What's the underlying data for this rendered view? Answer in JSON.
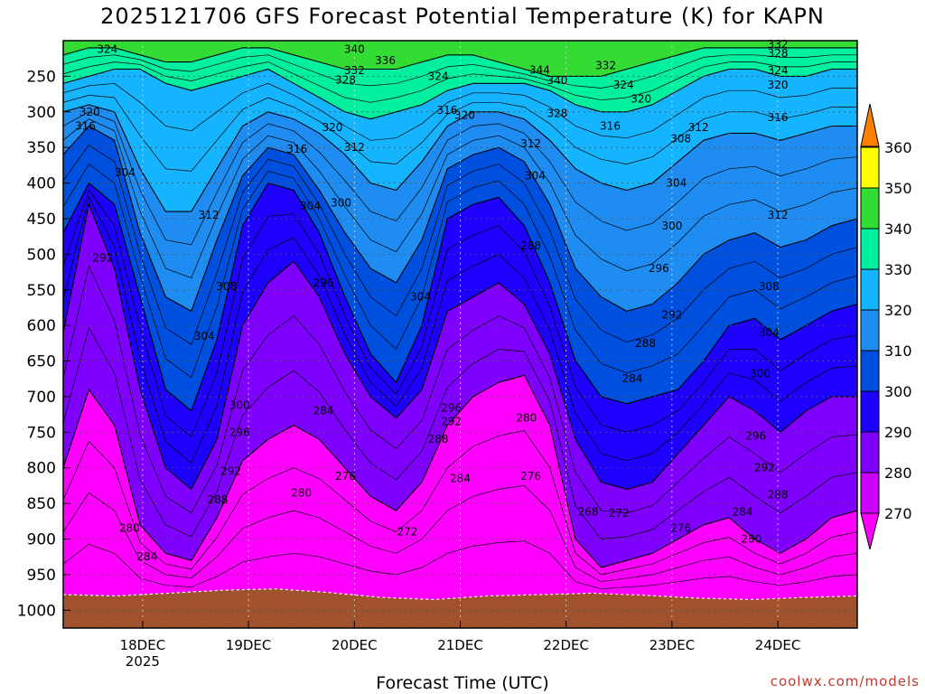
{
  "header": {
    "title": "2025121706 GFS Forecast Potential Temperature (K) for KAPN"
  },
  "footer": {
    "xlabel": "Forecast Time (UTC)",
    "credit": "coolwx.com/models"
  },
  "chart_data": {
    "type": "heatmap",
    "title": "2025121706 GFS Forecast Potential Temperature (K) for KAPN",
    "xlabel": "Forecast Time (UTC)",
    "ylabel": "",
    "y_axis": {
      "unit_scale": "pressure (hPa), inverted",
      "ylim": [
        200,
        1025
      ],
      "ticks": [
        250,
        300,
        350,
        400,
        450,
        500,
        550,
        600,
        650,
        700,
        750,
        800,
        850,
        900,
        950,
        1000
      ]
    },
    "x_axis": {
      "xlim": [
        "2025-12-17T06:00",
        "2025-12-24T18:00"
      ],
      "ticks": [
        {
          "time": "2025-12-18T00:00",
          "label": "18DEC",
          "sublabel": "2025"
        },
        {
          "time": "2025-12-19T00:00",
          "label": "19DEC"
        },
        {
          "time": "2025-12-20T00:00",
          "label": "20DEC"
        },
        {
          "time": "2025-12-21T00:00",
          "label": "21DEC"
        },
        {
          "time": "2025-12-22T00:00",
          "label": "22DEC"
        },
        {
          "time": "2025-12-23T00:00",
          "label": "23DEC"
        },
        {
          "time": "2025-12-24T00:00",
          "label": "24DEC"
        }
      ]
    },
    "grid": true,
    "colorbar": {
      "placement": "right",
      "levels": [
        270,
        280,
        290,
        300,
        310,
        320,
        330,
        340,
        350,
        360
      ],
      "colors": [
        "#ff00ff",
        "#cc00ff",
        "#7f00ff",
        "#1e00ff",
        "#0050e0",
        "#1e8cf0",
        "#14b4ff",
        "#00f0a0",
        "#32dc32",
        "#ffff00",
        "#ffbb00",
        "#ff8000"
      ]
    },
    "isentrope_profiles": [
      {
        "theta": 270,
        "p": [
          0,
          0,
          0,
          0,
          0,
          0,
          0,
          0,
          0,
          0,
          0,
          0,
          0,
          0,
          0,
          0,
          0,
          0,
          0,
          0,
          0,
          0,
          0,
          0,
          0,
          0,
          0,
          0,
          0,
          0,
          0,
          0
        ]
      },
      {
        "theta": 280,
        "p": [
          800,
          690,
          740,
          880,
          920,
          930,
          870,
          790,
          760,
          740,
          760,
          800,
          840,
          860,
          820,
          740,
          700,
          680,
          670,
          740,
          900,
          940,
          930,
          920,
          900,
          880,
          870,
          900,
          920,
          900,
          870,
          860
        ]
      },
      {
        "theta": 290,
        "p": [
          610,
          430,
          520,
          690,
          800,
          830,
          760,
          600,
          540,
          510,
          560,
          640,
          700,
          730,
          690,
          580,
          560,
          540,
          570,
          640,
          760,
          820,
          830,
          820,
          780,
          740,
          700,
          720,
          750,
          720,
          700,
          700
        ]
      },
      {
        "theta": 300,
        "p": [
          470,
          400,
          430,
          560,
          690,
          720,
          620,
          460,
          400,
          410,
          470,
          560,
          640,
          680,
          600,
          450,
          430,
          420,
          460,
          540,
          650,
          700,
          710,
          700,
          690,
          650,
          600,
          590,
          620,
          600,
          580,
          570
        ]
      },
      {
        "theta": 310,
        "p": [
          360,
          320,
          340,
          470,
          560,
          580,
          480,
          390,
          350,
          360,
          410,
          470,
          520,
          540,
          480,
          380,
          360,
          350,
          370,
          430,
          520,
          560,
          580,
          570,
          540,
          500,
          480,
          470,
          490,
          480,
          460,
          450
        ]
      },
      {
        "theta": 320,
        "p": [
          300,
          290,
          300,
          380,
          440,
          440,
          380,
          320,
          300,
          310,
          330,
          360,
          400,
          410,
          370,
          320,
          300,
          300,
          310,
          340,
          380,
          400,
          410,
          400,
          370,
          340,
          330,
          330,
          340,
          330,
          320,
          320
        ]
      },
      {
        "theta": 330,
        "p": [
          260,
          250,
          240,
          240,
          260,
          270,
          260,
          250,
          240,
          260,
          280,
          300,
          310,
          300,
          290,
          270,
          260,
          260,
          260,
          270,
          290,
          300,
          300,
          290,
          270,
          250,
          240,
          240,
          250,
          250,
          240,
          240
        ]
      },
      {
        "theta": 340,
        "p": [
          220,
          210,
          210,
          220,
          230,
          230,
          220,
          210,
          210,
          220,
          230,
          240,
          240,
          240,
          230,
          220,
          220,
          230,
          240,
          250,
          250,
          250,
          240,
          230,
          220,
          210,
          210,
          210,
          210,
          210,
          210,
          210
        ]
      }
    ],
    "contour_labels": [
      {
        "text": "324",
        "time": "2025-12-17T16:00",
        "p": 212
      },
      {
        "text": "320",
        "time": "2025-12-17T12:00",
        "p": 300
      },
      {
        "text": "316",
        "time": "2025-12-17T11:00",
        "p": 320
      },
      {
        "text": "304",
        "time": "2025-12-17T20:00",
        "p": 385
      },
      {
        "text": "292",
        "time": "2025-12-17T15:00",
        "p": 505
      },
      {
        "text": "312",
        "time": "2025-12-18T15:00",
        "p": 445
      },
      {
        "text": "308",
        "time": "2025-12-18T19:00",
        "p": 545
      },
      {
        "text": "304",
        "time": "2025-12-18T14:00",
        "p": 615
      },
      {
        "text": "300",
        "time": "2025-12-18T22:00",
        "p": 712
      },
      {
        "text": "296",
        "time": "2025-12-18T22:00",
        "p": 750
      },
      {
        "text": "292",
        "time": "2025-12-18T20:00",
        "p": 805
      },
      {
        "text": "288",
        "time": "2025-12-18T17:00",
        "p": 845
      },
      {
        "text": "284",
        "time": "2025-12-18T01:00",
        "p": 925
      },
      {
        "text": "280",
        "time": "2025-12-17T21:00",
        "p": 885
      },
      {
        "text": "340",
        "time": "2025-12-20T00:00",
        "p": 212
      },
      {
        "text": "336",
        "time": "2025-12-20T07:00",
        "p": 228
      },
      {
        "text": "332",
        "time": "2025-12-20T00:00",
        "p": 242
      },
      {
        "text": "328",
        "time": "2025-12-19T22:00",
        "p": 255
      },
      {
        "text": "320",
        "time": "2025-12-19T19:00",
        "p": 322
      },
      {
        "text": "316",
        "time": "2025-12-19T11:00",
        "p": 352
      },
      {
        "text": "312",
        "time": "2025-12-20T00:00",
        "p": 350
      },
      {
        "text": "304",
        "time": "2025-12-19T14:00",
        "p": 432
      },
      {
        "text": "300",
        "time": "2025-12-19T21:00",
        "p": 428
      },
      {
        "text": "296",
        "time": "2025-12-19T17:00",
        "p": 540
      },
      {
        "text": "284",
        "time": "2025-12-19T17:00",
        "p": 720
      },
      {
        "text": "280",
        "time": "2025-12-19T12:00",
        "p": 835
      },
      {
        "text": "276",
        "time": "2025-12-19T22:00",
        "p": 812
      },
      {
        "text": "272",
        "time": "2025-12-20T12:00",
        "p": 890
      },
      {
        "text": "324",
        "time": "2025-12-20T19:00",
        "p": 250
      },
      {
        "text": "316",
        "time": "2025-12-20T21:00",
        "p": 298
      },
      {
        "text": "320",
        "time": "2025-12-21T01:00",
        "p": 305
      },
      {
        "text": "304",
        "time": "2025-12-20T15:00",
        "p": 560
      },
      {
        "text": "296",
        "time": "2025-12-20T22:00",
        "p": 716
      },
      {
        "text": "292",
        "time": "2025-12-20T22:00",
        "p": 735
      },
      {
        "text": "288",
        "time": "2025-12-20T19:00",
        "p": 760
      },
      {
        "text": "284",
        "time": "2025-12-21T00:00",
        "p": 815
      },
      {
        "text": "344",
        "time": "2025-12-21T18:00",
        "p": 241
      },
      {
        "text": "340",
        "time": "2025-12-21T22:00",
        "p": 256
      },
      {
        "text": "332",
        "time": "2025-12-22T09:00",
        "p": 235
      },
      {
        "text": "324",
        "time": "2025-12-22T13:00",
        "p": 262
      },
      {
        "text": "320",
        "time": "2025-12-22T17:00",
        "p": 282
      },
      {
        "text": "316",
        "time": "2025-12-22T10:00",
        "p": 320
      },
      {
        "text": "328",
        "time": "2025-12-21T22:00",
        "p": 302
      },
      {
        "text": "312",
        "time": "2025-12-21T16:00",
        "p": 345
      },
      {
        "text": "304",
        "time": "2025-12-21T17:00",
        "p": 390
      },
      {
        "text": "288",
        "time": "2025-12-21T16:00",
        "p": 488
      },
      {
        "text": "280",
        "time": "2025-12-21T15:00",
        "p": 730
      },
      {
        "text": "276",
        "time": "2025-12-21T16:00",
        "p": 812
      },
      {
        "text": "268",
        "time": "2025-12-22T05:00",
        "p": 862
      },
      {
        "text": "272",
        "time": "2025-12-22T12:00",
        "p": 864
      },
      {
        "text": "288",
        "time": "2025-12-22T18:00",
        "p": 625
      },
      {
        "text": "284",
        "time": "2025-12-22T15:00",
        "p": 675
      },
      {
        "text": "300",
        "time": "2025-12-22T24:00",
        "p": 460
      },
      {
        "text": "296",
        "time": "2025-12-22T21:00",
        "p": 520
      },
      {
        "text": "292",
        "time": "2025-12-22T24:00",
        "p": 585
      },
      {
        "text": "276",
        "time": "2025-12-23T02:00",
        "p": 885
      },
      {
        "text": "312",
        "time": "2025-12-23T06:00",
        "p": 322
      },
      {
        "text": "308",
        "time": "2025-12-23T02:00",
        "p": 338
      },
      {
        "text": "304",
        "time": "2025-12-23T01:00",
        "p": 400
      },
      {
        "text": "316",
        "time": "2025-12-23T24:00",
        "p": 308
      },
      {
        "text": "312",
        "time": "2025-12-24T00:00",
        "p": 445
      },
      {
        "text": "308",
        "time": "2025-12-23T22:00",
        "p": 545
      },
      {
        "text": "304",
        "time": "2025-12-23T22:00",
        "p": 610
      },
      {
        "text": "300",
        "time": "2025-12-23T20:00",
        "p": 668
      },
      {
        "text": "296",
        "time": "2025-12-23T19:00",
        "p": 755
      },
      {
        "text": "292",
        "time": "2025-12-23T21:00",
        "p": 800
      },
      {
        "text": "288",
        "time": "2025-12-23T24:00",
        "p": 838
      },
      {
        "text": "284",
        "time": "2025-12-23T16:00",
        "p": 862
      },
      {
        "text": "280",
        "time": "2025-12-23T18:00",
        "p": 900
      },
      {
        "text": "332",
        "time": "2025-12-23T24:00",
        "p": 205
      },
      {
        "text": "328",
        "time": "2025-12-23T24:00",
        "p": 218
      },
      {
        "text": "324",
        "time": "2025-12-23T24:00",
        "p": 242
      },
      {
        "text": "320",
        "time": "2025-12-24T00:00",
        "p": 262
      }
    ]
  }
}
